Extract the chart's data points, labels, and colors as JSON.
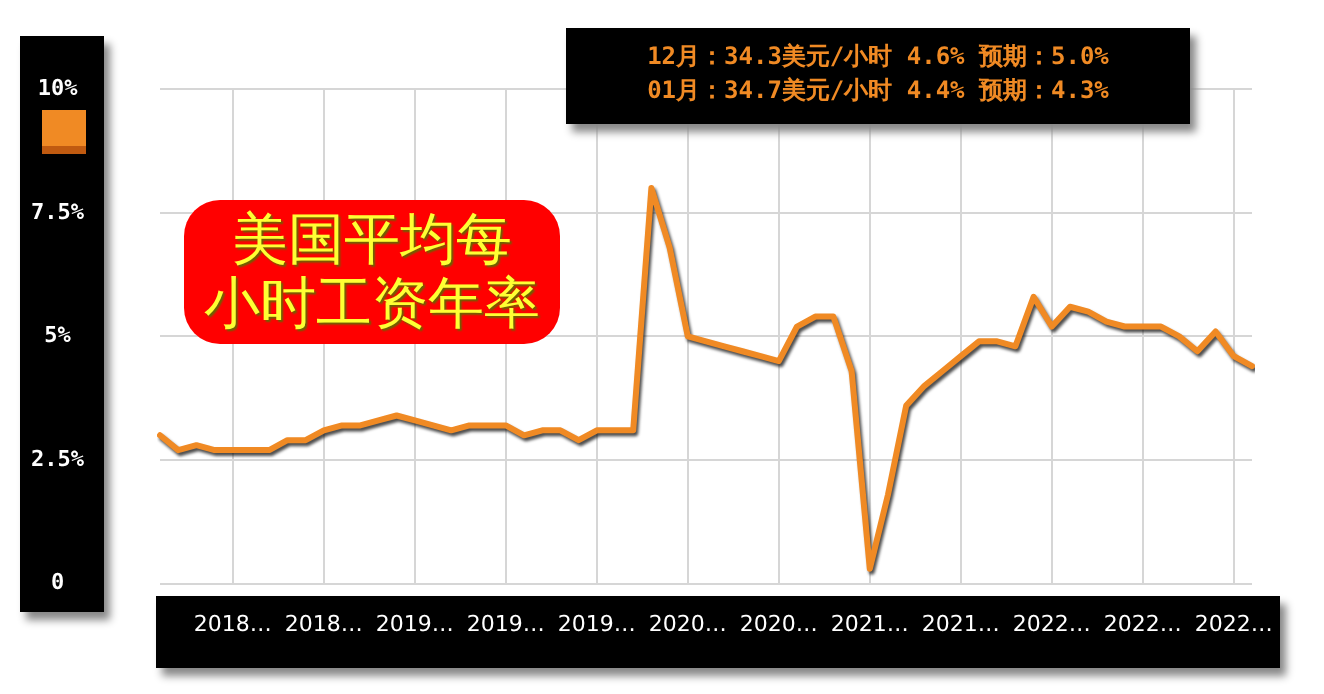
{
  "chart_data": {
    "type": "line",
    "title": "美国平均每小时工资年率",
    "annotations": [
      "12月：34.3美元/小时 4.6% 预期：5.0%",
      "01月：34.7美元/小时 4.4% 预期：4.3%"
    ],
    "categories": [
      null,
      null,
      null,
      null,
      "2018…",
      null,
      null,
      null,
      null,
      "2018…",
      null,
      null,
      null,
      null,
      "2019…",
      null,
      null,
      null,
      null,
      "2019…",
      null,
      null,
      null,
      null,
      "2019…",
      null,
      null,
      null,
      null,
      "2020…",
      null,
      null,
      null,
      null,
      "2020…",
      null,
      null,
      null,
      null,
      "2021…",
      null,
      null,
      null,
      null,
      "2021…",
      null,
      null,
      null,
      null,
      "2022…",
      null,
      null,
      null,
      null,
      "2022…",
      null,
      null,
      null,
      null,
      "2022…",
      null
    ],
    "values": [
      3.0,
      2.7,
      2.8,
      2.7,
      2.7,
      2.7,
      2.7,
      2.9,
      2.9,
      3.1,
      3.2,
      3.2,
      3.3,
      3.4,
      3.3,
      3.2,
      3.1,
      3.2,
      3.2,
      3.2,
      3.0,
      3.1,
      3.1,
      2.9,
      3.1,
      3.1,
      3.1,
      8.0,
      6.8,
      5.0,
      4.9,
      4.8,
      4.7,
      4.6,
      4.5,
      5.2,
      5.4,
      5.4,
      4.3,
      0.3,
      1.8,
      3.6,
      4.0,
      4.3,
      4.6,
      4.9,
      4.9,
      4.8,
      5.8,
      5.2,
      5.6,
      5.5,
      5.3,
      5.2,
      5.2,
      5.2,
      5.0,
      4.7,
      5.1,
      4.6,
      4.4
    ],
    "color": "#f08a24",
    "ylim": [
      0,
      10
    ],
    "yticks": [
      0,
      {
        "value": 2.5,
        "label": "2.5%"
      },
      {
        "value": 5,
        "label": "5%"
      },
      {
        "value": 7.5,
        "label": "7.5%"
      },
      {
        "value": 10,
        "label": "10%"
      }
    ],
    "grid": true,
    "legend": false,
    "marker": "none"
  }
}
